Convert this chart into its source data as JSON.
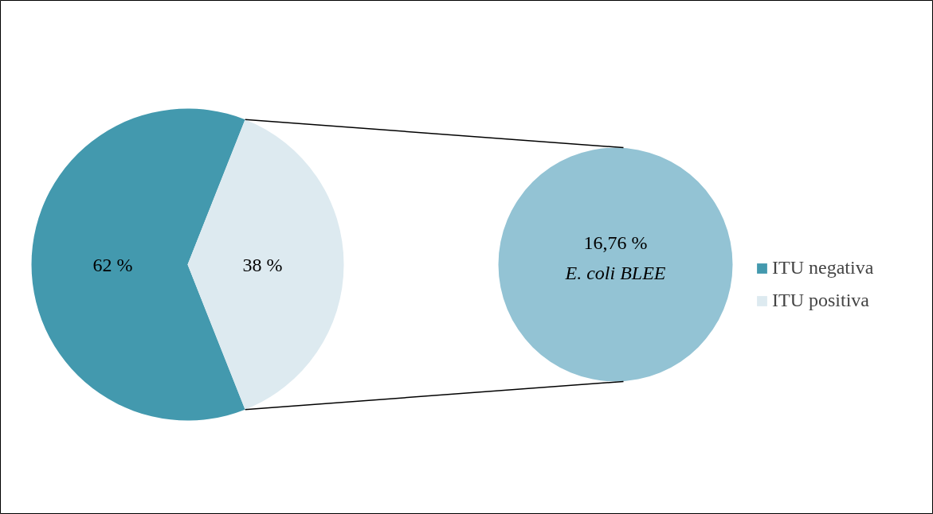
{
  "chart_data": [
    {
      "type": "pie",
      "categories": [
        "ITU negativa",
        "ITU positiva"
      ],
      "values": [
        62,
        38
      ],
      "colors": [
        "#4399ae",
        "#ddeaf0"
      ],
      "value_labels": [
        "62 %",
        "38 %"
      ],
      "legend": "right"
    },
    {
      "type": "other",
      "categories": [
        "E. coli BLEE"
      ],
      "values": [
        16.76
      ],
      "value_labels": [
        "16,76 %"
      ],
      "color": "#93c3d4"
    }
  ]
}
